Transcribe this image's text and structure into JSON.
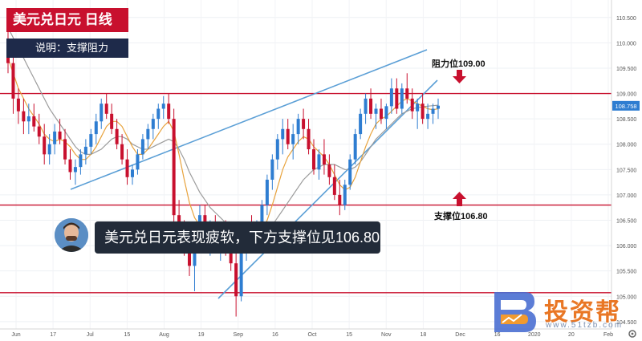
{
  "title": {
    "main": "美元兑日元 日线",
    "sub": "说明：支撑阻力"
  },
  "banner": "美元兑日元表现疲软，下方支撑位见106.80",
  "annotations": {
    "resistance_label": "阻力位109.00",
    "support_label": "支撑位106.80",
    "last_price": "108.758"
  },
  "watermark": {
    "brand": "投资帮",
    "url": "www.51tzb.com"
  },
  "colors": {
    "up": "#2e7dd1",
    "down": "#c8102e",
    "level_line": "#c8102e",
    "trendline": "#5b9fd6",
    "ma_fast": "#e8a33d",
    "ma_slow": "#9c9c9c",
    "title_bg": "#c8102e",
    "subtitle_bg": "#1e2a4a",
    "banner_bg": "#222b39"
  },
  "icons": {
    "arrow_down": "arrow-down-icon",
    "arrow_up": "arrow-up-icon",
    "settings": "gear-icon",
    "avatar": "avatar"
  },
  "chart_data": {
    "type": "candlestick",
    "y_ticks": [
      "110.500",
      "110.000",
      "109.500",
      "109.000",
      "108.500",
      "108.000",
      "107.500",
      "107.000",
      "106.500",
      "106.000",
      "105.500",
      "105.000",
      "104.500"
    ],
    "ylim": [
      104.45,
      110.75
    ],
    "x_ticks": [
      "Jun",
      "17",
      "Jul",
      "15",
      "Aug",
      "19",
      "Sep",
      "16",
      "Oct",
      "15",
      "Nov",
      "18",
      "Dec",
      "16",
      "2020",
      "20",
      "Feb"
    ],
    "horizontal_levels": [
      109.0,
      106.8,
      105.07
    ],
    "last_price": 108.758,
    "candles": [
      [
        109.9,
        110.25,
        109.4,
        109.6
      ],
      [
        109.6,
        109.8,
        108.6,
        108.9
      ],
      [
        108.9,
        109.1,
        108.4,
        108.65
      ],
      [
        108.65,
        108.9,
        108.2,
        108.45
      ],
      [
        108.45,
        108.8,
        108.2,
        108.55
      ],
      [
        108.55,
        108.8,
        108.25,
        108.35
      ],
      [
        108.35,
        108.6,
        108.0,
        108.15
      ],
      [
        108.15,
        108.4,
        107.6,
        107.8
      ],
      [
        107.8,
        108.2,
        107.6,
        108.0
      ],
      [
        108.0,
        108.4,
        107.8,
        108.25
      ],
      [
        108.25,
        108.5,
        108.0,
        108.1
      ],
      [
        108.1,
        108.3,
        107.6,
        107.7
      ],
      [
        107.7,
        107.9,
        107.3,
        107.45
      ],
      [
        107.45,
        107.7,
        107.2,
        107.55
      ],
      [
        107.55,
        107.9,
        107.4,
        107.8
      ],
      [
        107.8,
        108.1,
        107.6,
        107.95
      ],
      [
        107.95,
        108.3,
        107.8,
        108.2
      ],
      [
        108.2,
        108.6,
        108.0,
        108.45
      ],
      [
        108.45,
        108.9,
        108.3,
        108.8
      ],
      [
        108.8,
        109.0,
        108.5,
        108.6
      ],
      [
        108.6,
        108.8,
        108.2,
        108.3
      ],
      [
        108.3,
        108.5,
        107.9,
        108.0
      ],
      [
        108.0,
        108.2,
        107.6,
        107.7
      ],
      [
        107.7,
        107.9,
        107.2,
        107.35
      ],
      [
        107.35,
        107.6,
        107.2,
        107.5
      ],
      [
        107.5,
        107.9,
        107.4,
        107.8
      ],
      [
        107.8,
        108.2,
        107.7,
        108.1
      ],
      [
        108.1,
        108.4,
        107.9,
        108.3
      ],
      [
        108.3,
        108.6,
        108.1,
        108.5
      ],
      [
        108.5,
        108.8,
        108.3,
        108.7
      ],
      [
        108.7,
        108.95,
        108.5,
        108.8
      ],
      [
        108.8,
        109.0,
        108.4,
        108.5
      ],
      [
        108.5,
        108.7,
        106.4,
        106.6
      ],
      [
        106.6,
        106.9,
        106.0,
        106.2
      ],
      [
        106.2,
        106.5,
        105.8,
        106.0
      ],
      [
        106.0,
        106.3,
        105.4,
        105.6
      ],
      [
        105.6,
        106.2,
        105.1,
        106.05
      ],
      [
        106.05,
        106.8,
        105.9,
        106.6
      ],
      [
        106.6,
        106.8,
        106.0,
        106.15
      ],
      [
        106.15,
        106.5,
        105.8,
        106.3
      ],
      [
        106.3,
        106.6,
        105.9,
        106.0
      ],
      [
        106.0,
        106.4,
        105.7,
        106.2
      ],
      [
        106.2,
        106.5,
        105.8,
        105.9
      ],
      [
        105.9,
        106.2,
        105.5,
        105.65
      ],
      [
        105.65,
        106.0,
        104.6,
        105.0
      ],
      [
        105.0,
        106.1,
        104.9,
        106.0
      ],
      [
        106.0,
        106.4,
        105.7,
        106.3
      ],
      [
        106.3,
        106.6,
        106.0,
        106.2
      ],
      [
        106.2,
        106.5,
        105.9,
        106.4
      ],
      [
        106.4,
        106.9,
        106.2,
        106.8
      ],
      [
        106.8,
        107.4,
        106.6,
        107.3
      ],
      [
        107.3,
        107.8,
        107.1,
        107.7
      ],
      [
        107.7,
        108.2,
        107.5,
        108.1
      ],
      [
        108.1,
        108.5,
        107.8,
        108.3
      ],
      [
        108.3,
        108.5,
        107.9,
        108.0
      ],
      [
        108.0,
        108.4,
        107.7,
        108.2
      ],
      [
        108.2,
        108.6,
        108.0,
        108.5
      ],
      [
        108.5,
        108.7,
        108.1,
        108.3
      ],
      [
        108.3,
        108.5,
        107.8,
        107.9
      ],
      [
        107.9,
        108.1,
        107.4,
        107.5
      ],
      [
        107.5,
        107.9,
        107.3,
        107.8
      ],
      [
        107.8,
        108.1,
        107.4,
        107.6
      ],
      [
        107.6,
        107.8,
        107.2,
        107.35
      ],
      [
        107.35,
        107.6,
        106.9,
        107.0
      ],
      [
        107.0,
        107.3,
        106.6,
        106.8
      ],
      [
        106.8,
        107.3,
        106.7,
        107.2
      ],
      [
        107.2,
        107.8,
        107.1,
        107.7
      ],
      [
        107.7,
        108.3,
        107.6,
        108.2
      ],
      [
        108.2,
        108.7,
        108.1,
        108.6
      ],
      [
        108.6,
        109.0,
        108.4,
        108.9
      ],
      [
        108.9,
        109.1,
        108.5,
        108.6
      ],
      [
        108.6,
        108.8,
        108.3,
        108.7
      ],
      [
        108.7,
        108.9,
        108.4,
        108.5
      ],
      [
        108.5,
        108.8,
        108.3,
        108.75
      ],
      [
        108.75,
        109.3,
        108.6,
        109.1
      ],
      [
        109.1,
        109.3,
        108.6,
        108.7
      ],
      [
        108.7,
        109.2,
        108.6,
        109.1
      ],
      [
        109.1,
        109.4,
        108.8,
        108.9
      ],
      [
        108.9,
        109.1,
        108.5,
        108.65
      ],
      [
        108.65,
        108.9,
        108.3,
        108.8
      ],
      [
        108.8,
        109.0,
        108.4,
        108.5
      ],
      [
        108.5,
        108.8,
        108.3,
        108.6
      ],
      [
        108.6,
        108.8,
        108.4,
        108.7
      ],
      [
        108.7,
        108.9,
        108.5,
        108.76
      ]
    ],
    "ma_fast": [
      109.7,
      109.4,
      109.1,
      108.9,
      108.7,
      108.55,
      108.4,
      108.2,
      108.1,
      108.05,
      108.1,
      108.05,
      107.95,
      107.8,
      107.7,
      107.7,
      107.8,
      107.95,
      108.15,
      108.35,
      108.45,
      108.45,
      108.35,
      108.15,
      107.95,
      107.8,
      107.8,
      107.9,
      108.05,
      108.2,
      108.35,
      108.45,
      108.25,
      107.8,
      107.3,
      106.85,
      106.55,
      106.4,
      106.35,
      106.3,
      106.25,
      106.2,
      106.15,
      106.05,
      105.9,
      105.85,
      105.9,
      106.0,
      106.1,
      106.25,
      106.5,
      106.8,
      107.15,
      107.5,
      107.75,
      107.9,
      108.05,
      108.15,
      108.1,
      107.95,
      107.85,
      107.75,
      107.6,
      107.4,
      107.2,
      107.1,
      107.15,
      107.35,
      107.65,
      107.95,
      108.2,
      108.4,
      108.5,
      108.55,
      108.65,
      108.75,
      108.85,
      108.9,
      108.85,
      108.8,
      108.75,
      108.7,
      108.68,
      108.7
    ],
    "ma_slow": [
      110.3,
      110.1,
      109.9,
      109.7,
      109.5,
      109.3,
      109.1,
      108.9,
      108.7,
      108.55,
      108.4,
      108.25,
      108.1,
      107.95,
      107.85,
      107.8,
      107.8,
      107.85,
      107.9,
      108.0,
      108.1,
      108.15,
      108.15,
      108.1,
      108.0,
      107.95,
      107.9,
      107.9,
      107.95,
      108.0,
      108.05,
      108.1,
      108.05,
      107.9,
      107.7,
      107.45,
      107.25,
      107.05,
      106.9,
      106.75,
      106.65,
      106.55,
      106.45,
      106.35,
      106.25,
      106.2,
      106.15,
      106.15,
      106.15,
      106.2,
      106.3,
      106.4,
      106.55,
      106.7,
      106.85,
      107.0,
      107.15,
      107.3,
      107.4,
      107.5,
      107.55,
      107.6,
      107.6,
      107.6,
      107.55,
      107.5,
      107.5,
      107.55,
      107.65,
      107.8,
      107.95,
      108.1,
      108.2,
      108.3,
      108.4,
      108.5,
      108.6,
      108.65,
      108.7,
      108.72,
      108.74,
      108.75,
      108.76,
      108.77
    ]
  }
}
